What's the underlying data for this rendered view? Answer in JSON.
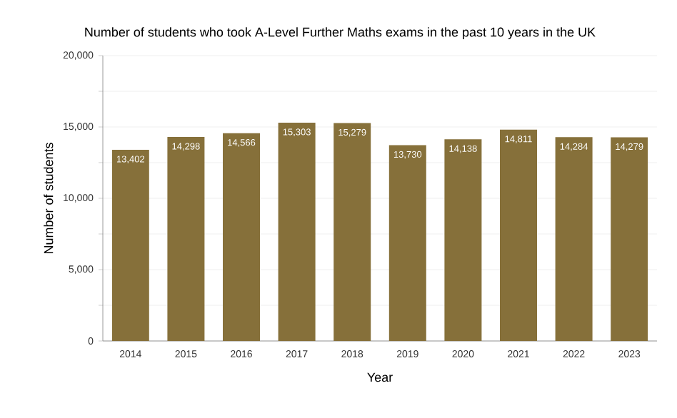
{
  "chart_data": {
    "type": "bar",
    "title": "Number of students who took A-Level Further Maths exams in the past 10 years in the UK",
    "xlabel": "Year",
    "ylabel": "Number of students",
    "categories": [
      "2014",
      "2015",
      "2016",
      "2017",
      "2018",
      "2019",
      "2020",
      "2021",
      "2022",
      "2023"
    ],
    "values": [
      13402,
      14298,
      14566,
      15303,
      15279,
      13730,
      14138,
      14811,
      14284,
      14279
    ],
    "value_labels": [
      "13,402",
      "14,298",
      "14,566",
      "15,303",
      "15,279",
      "13,730",
      "14,138",
      "14,811",
      "14,284",
      "14,279"
    ],
    "color": "#86703a",
    "ylim": [
      0,
      20000
    ],
    "yticks": [
      0,
      {
        "value": 2500,
        "label": null
      },
      {
        "value": 5000,
        "label": "5,000"
      },
      {
        "value": 7500,
        "label": null
      },
      {
        "value": 10000,
        "label": "10,000"
      },
      {
        "value": 12500,
        "label": null
      },
      {
        "value": 15000,
        "label": "15,000"
      },
      {
        "value": 17500,
        "label": null
      },
      {
        "value": 20000,
        "label": "20,000"
      }
    ],
    "grid": "y"
  }
}
